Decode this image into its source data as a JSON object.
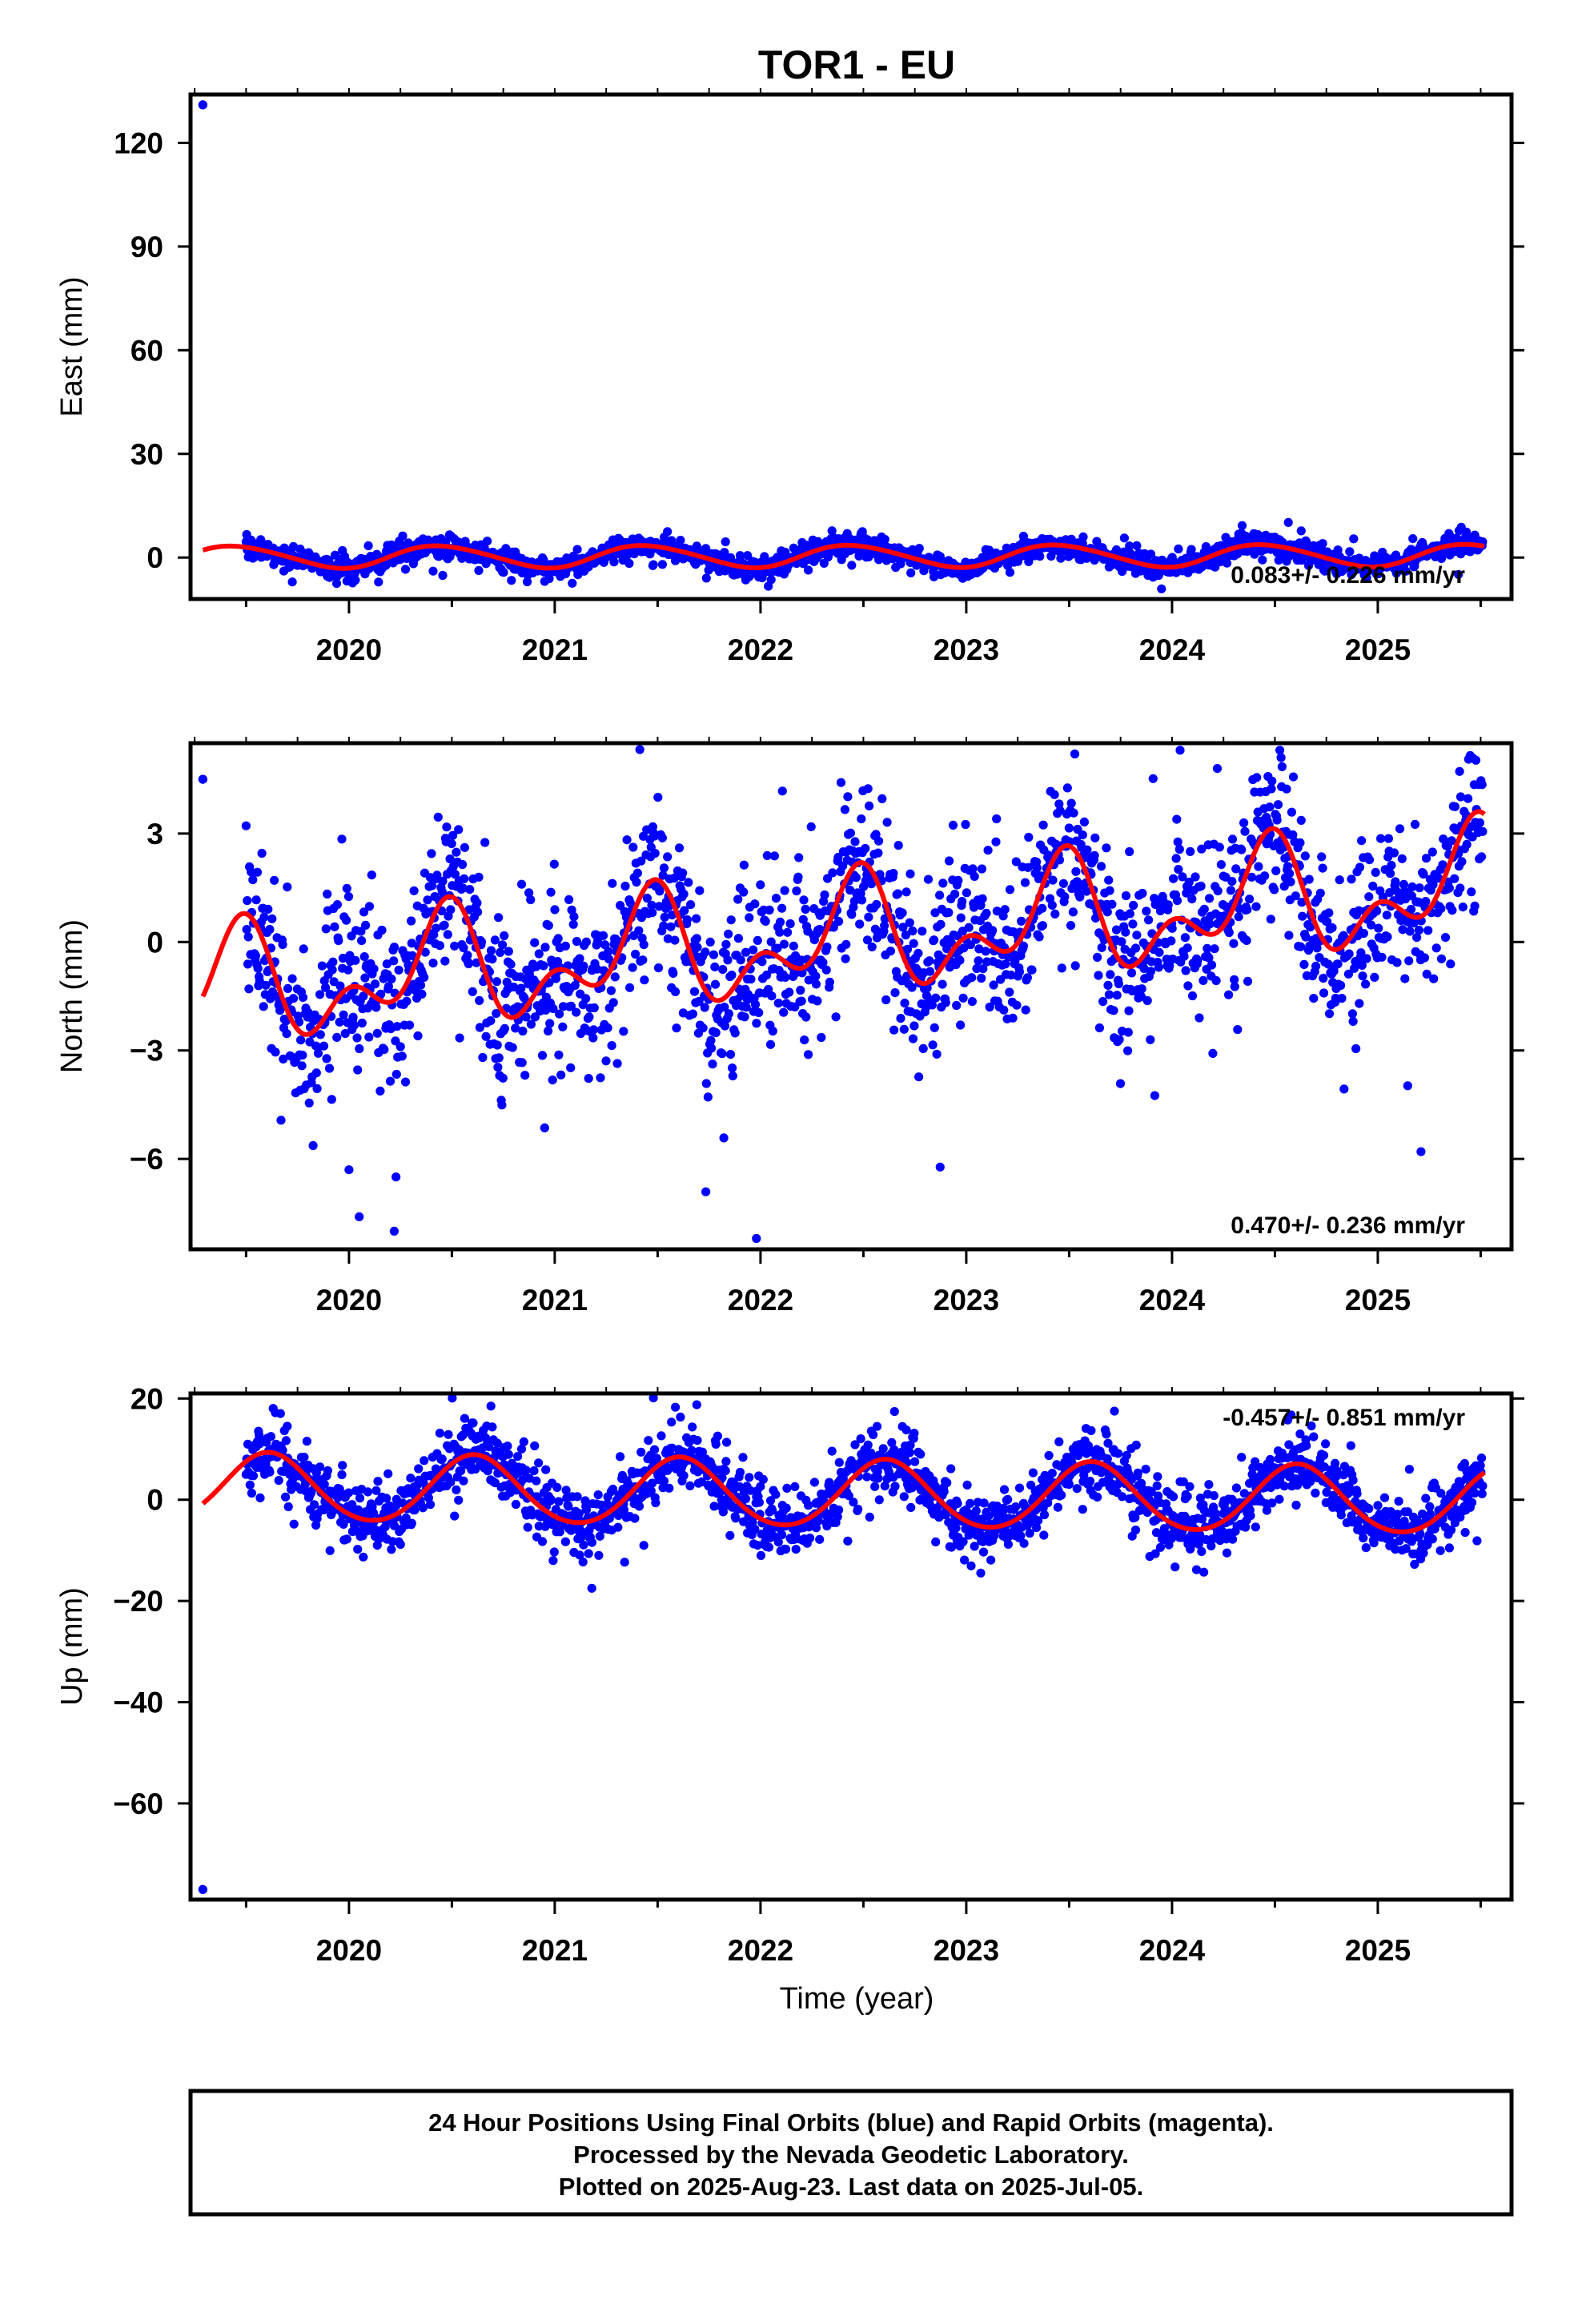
{
  "title": "TOR1 - EU",
  "colors": {
    "points": "#0000ff",
    "fit": "#ff0000",
    "frame": "#000000"
  },
  "xlabel": "Time (year)",
  "footer": {
    "line1": "24 Hour Positions Using Final Orbits (blue) and Rapid Orbits (magenta).",
    "line2": "Processed by the Nevada Geodetic Laboratory.",
    "line3": "Plotted on 2025-Aug-23. Last data on 2025-Jul-05."
  },
  "chart_data": [
    {
      "type": "scatter",
      "name": "east",
      "ylabel": "East (mm)",
      "rate_label": "0.083+/- 0.226 mm/yr",
      "xlim": [
        2019.23,
        2025.65
      ],
      "ylim": [
        -12,
        134
      ],
      "xticks": [
        "2020",
        "2021",
        "2022",
        "2023",
        "2024",
        "2025"
      ],
      "yticks": [
        "120",
        "90",
        "60",
        "30",
        "0"
      ],
      "ytick_values": [
        120,
        90,
        60,
        30,
        0
      ],
      "grid": false,
      "fit": {
        "offset": 0.4,
        "trend": 0.083,
        "ref_year": 2022.4,
        "ann_amp": 3.2,
        "ann_phase": 2022.45,
        "semi_amp": 0.3,
        "semi_phase": 2022.3
      },
      "noise": 1.5,
      "outliers": [
        [
          2019.29,
          131
        ],
        [
          2019.94,
          -7.5
        ]
      ],
      "data_start": 2019.5,
      "data_end": 2025.51,
      "first_point": [
        2019.29,
        131
      ]
    },
    {
      "type": "scatter",
      "name": "north",
      "ylabel": "North (mm)",
      "rate_label": "0.470+/- 0.236 mm/yr",
      "xlim": [
        2019.23,
        2025.65
      ],
      "ylim": [
        -8.5,
        5.5
      ],
      "xticks": [
        "2020",
        "2021",
        "2022",
        "2023",
        "2024",
        "2025"
      ],
      "yticks": [
        "3",
        "0",
        "−3",
        "−6"
      ],
      "ytick_values": [
        3,
        0,
        -3,
        -6
      ],
      "grid": false,
      "fit": {
        "offset": 0.1,
        "trend": 0.47,
        "ref_year": 2022.4,
        "ann_amp": 1.2,
        "ann_phase": 2022.45,
        "semi_amp": 0.9,
        "semi_phase": 2022.5
      },
      "noise": 1.1,
      "outliers": [
        [
          2019.29,
          4.5
        ],
        [
          2020.05,
          -7.6
        ],
        [
          2020.22,
          -8.0
        ],
        [
          2021.98,
          -8.2
        ],
        [
          2020.0,
          -6.3
        ],
        [
          2024.53,
          5.1
        ],
        [
          2024.22,
          4.8
        ],
        [
          2025.21,
          -5.8
        ]
      ],
      "data_start": 2019.5,
      "data_end": 2025.51,
      "first_point": [
        2019.29,
        4.5
      ]
    },
    {
      "type": "scatter",
      "name": "up",
      "ylabel": "Up (mm)",
      "rate_label": "-0.457+/- 0.851 mm/yr",
      "xlim": [
        2019.23,
        2025.65
      ],
      "ylim": [
        -79,
        21
      ],
      "xticks": [
        "2020",
        "2021",
        "2022",
        "2023",
        "2024",
        "2025"
      ],
      "yticks": [
        "20",
        "0",
        "−20",
        "−40",
        "−60"
      ],
      "ytick_values": [
        20,
        0,
        -20,
        -40,
        -60
      ],
      "grid": false,
      "fit": {
        "offset": 1.0,
        "trend": -0.457,
        "ref_year": 2022.4,
        "ann_amp": 6.6,
        "ann_phase": 2022.61,
        "semi_amp": 0.5,
        "semi_phase": 2022.6
      },
      "noise": 3.0,
      "outliers": [
        [
          2019.29,
          -77
        ],
        [
          2020.69,
          18.5
        ],
        [
          2021.18,
          -17.5
        ],
        [
          2023.72,
          17.5
        ]
      ],
      "data_start": 2019.5,
      "data_end": 2025.51,
      "first_point": [
        2019.29,
        -77
      ]
    }
  ]
}
